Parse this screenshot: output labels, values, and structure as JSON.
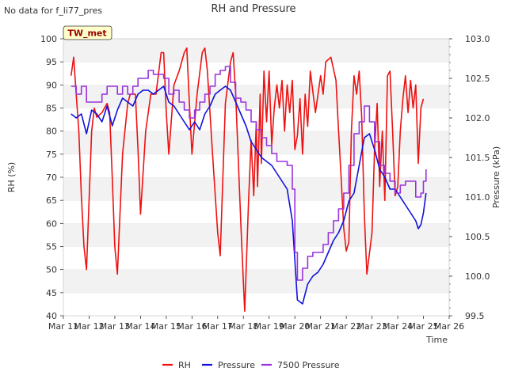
{
  "corner_note": "No data for f_li77_pres",
  "station_badge": "TW_met",
  "chart_data": {
    "type": "line",
    "title": "RH and Pressure",
    "xlabel": "Time",
    "ylabel_left": "RH (%)",
    "ylabel_right": "Pressure (kPa)",
    "x_ticks": [
      "Mar 11",
      "Mar 12",
      "Mar 13",
      "Mar 14",
      "Mar 15",
      "Mar 16",
      "Mar 17",
      "Mar 18",
      "Mar 19",
      "Mar 20",
      "Mar 21",
      "Mar 22",
      "Mar 23",
      "Mar 24",
      "Mar 25",
      "Mar 26"
    ],
    "xlim_days": [
      11,
      26
    ],
    "ylim_left": [
      40,
      100
    ],
    "yticks_left": [
      40,
      45,
      50,
      55,
      60,
      65,
      70,
      75,
      80,
      85,
      90,
      95,
      100
    ],
    "ylim_right": [
      99.5,
      103.0
    ],
    "yticks_right": [
      99.5,
      100.0,
      100.5,
      101.0,
      101.5,
      102.0,
      102.5,
      103.0
    ],
    "grid": "horizontal bands",
    "legend_position": "bottom-center",
    "series": [
      {
        "name": "RH",
        "axis": "left",
        "color": "#ee1111",
        "step": false,
        "points": [
          [
            11.3,
            92
          ],
          [
            11.4,
            96
          ],
          [
            11.5,
            88
          ],
          [
            11.6,
            80
          ],
          [
            11.7,
            66
          ],
          [
            11.8,
            55
          ],
          [
            11.9,
            50
          ],
          [
            12.1,
            80
          ],
          [
            12.2,
            85
          ],
          [
            12.3,
            83
          ],
          [
            12.5,
            84
          ],
          [
            12.7,
            86
          ],
          [
            12.8,
            84
          ],
          [
            12.9,
            70
          ],
          [
            13.0,
            55
          ],
          [
            13.1,
            49
          ],
          [
            13.3,
            75
          ],
          [
            13.5,
            86
          ],
          [
            13.6,
            88
          ],
          [
            13.8,
            88
          ],
          [
            13.9,
            76
          ],
          [
            14.0,
            62
          ],
          [
            14.2,
            80
          ],
          [
            14.4,
            88
          ],
          [
            14.6,
            88
          ],
          [
            14.8,
            97
          ],
          [
            14.9,
            97
          ],
          [
            15.0,
            84
          ],
          [
            15.1,
            75
          ],
          [
            15.3,
            90
          ],
          [
            15.5,
            93
          ],
          [
            15.7,
            97
          ],
          [
            15.8,
            98
          ],
          [
            15.9,
            86
          ],
          [
            16.0,
            75
          ],
          [
            16.2,
            88
          ],
          [
            16.4,
            97
          ],
          [
            16.5,
            98
          ],
          [
            16.6,
            93
          ],
          [
            16.8,
            75
          ],
          [
            17.0,
            58
          ],
          [
            17.1,
            53
          ],
          [
            17.3,
            86
          ],
          [
            17.5,
            95
          ],
          [
            17.6,
            97
          ],
          [
            17.7,
            88
          ],
          [
            17.9,
            60
          ],
          [
            18.0,
            47
          ],
          [
            18.05,
            41
          ],
          [
            18.2,
            65
          ],
          [
            18.3,
            78
          ],
          [
            18.4,
            66
          ],
          [
            18.5,
            82
          ],
          [
            18.55,
            68
          ],
          [
            18.65,
            88
          ],
          [
            18.7,
            73
          ],
          [
            18.8,
            93
          ],
          [
            18.9,
            82
          ],
          [
            19.0,
            93
          ],
          [
            19.1,
            77
          ],
          [
            19.2,
            85
          ],
          [
            19.3,
            90
          ],
          [
            19.4,
            85
          ],
          [
            19.5,
            91
          ],
          [
            19.6,
            80
          ],
          [
            19.7,
            90
          ],
          [
            19.8,
            84
          ],
          [
            19.9,
            91
          ],
          [
            20.0,
            76
          ],
          [
            20.1,
            79
          ],
          [
            20.2,
            87
          ],
          [
            20.3,
            75
          ],
          [
            20.4,
            88
          ],
          [
            20.5,
            81
          ],
          [
            20.6,
            93
          ],
          [
            20.8,
            84
          ],
          [
            21.0,
            92
          ],
          [
            21.1,
            88
          ],
          [
            21.2,
            95
          ],
          [
            21.4,
            96
          ],
          [
            21.6,
            91
          ],
          [
            21.7,
            80
          ],
          [
            21.8,
            70
          ],
          [
            21.9,
            59
          ],
          [
            22.0,
            54
          ],
          [
            22.1,
            56
          ],
          [
            22.2,
            80
          ],
          [
            22.3,
            92
          ],
          [
            22.4,
            88
          ],
          [
            22.5,
            93
          ],
          [
            22.6,
            83
          ],
          [
            22.7,
            62
          ],
          [
            22.8,
            49
          ],
          [
            23.0,
            58
          ],
          [
            23.1,
            76
          ],
          [
            23.2,
            86
          ],
          [
            23.3,
            68
          ],
          [
            23.4,
            80
          ],
          [
            23.5,
            65
          ],
          [
            23.6,
            92
          ],
          [
            23.7,
            93
          ],
          [
            23.8,
            80
          ],
          [
            23.9,
            66
          ],
          [
            24.0,
            68
          ],
          [
            24.1,
            80
          ],
          [
            24.2,
            87
          ],
          [
            24.3,
            92
          ],
          [
            24.4,
            84
          ],
          [
            24.5,
            91
          ],
          [
            24.6,
            85
          ],
          [
            24.7,
            90
          ],
          [
            24.8,
            73
          ],
          [
            24.9,
            85
          ],
          [
            25.0,
            87
          ]
        ]
      },
      {
        "name": "Pressure",
        "axis": "right",
        "color": "#1111dd",
        "step": false,
        "points": [
          [
            11.3,
            102.05
          ],
          [
            11.5,
            102.0
          ],
          [
            11.7,
            102.05
          ],
          [
            11.9,
            101.8
          ],
          [
            12.1,
            102.1
          ],
          [
            12.3,
            102.05
          ],
          [
            12.5,
            101.95
          ],
          [
            12.7,
            102.15
          ],
          [
            12.9,
            101.9
          ],
          [
            13.1,
            102.1
          ],
          [
            13.3,
            102.25
          ],
          [
            13.5,
            102.2
          ],
          [
            13.7,
            102.15
          ],
          [
            13.9,
            102.3
          ],
          [
            14.1,
            102.35
          ],
          [
            14.3,
            102.35
          ],
          [
            14.5,
            102.3
          ],
          [
            14.7,
            102.35
          ],
          [
            14.9,
            102.4
          ],
          [
            15.1,
            102.2
          ],
          [
            15.3,
            102.15
          ],
          [
            15.5,
            102.05
          ],
          [
            15.7,
            101.95
          ],
          [
            15.9,
            101.85
          ],
          [
            16.1,
            101.95
          ],
          [
            16.3,
            101.85
          ],
          [
            16.5,
            102.05
          ],
          [
            16.7,
            102.15
          ],
          [
            16.9,
            102.3
          ],
          [
            17.1,
            102.35
          ],
          [
            17.3,
            102.4
          ],
          [
            17.5,
            102.35
          ],
          [
            17.7,
            102.2
          ],
          [
            17.9,
            102.05
          ],
          [
            18.1,
            101.9
          ],
          [
            18.3,
            101.7
          ],
          [
            18.5,
            101.6
          ],
          [
            18.7,
            101.5
          ],
          [
            18.9,
            101.45
          ],
          [
            19.1,
            101.4
          ],
          [
            19.3,
            101.3
          ],
          [
            19.5,
            101.2
          ],
          [
            19.7,
            101.1
          ],
          [
            19.9,
            100.7
          ],
          [
            20.0,
            100.2
          ],
          [
            20.1,
            99.7
          ],
          [
            20.3,
            99.65
          ],
          [
            20.5,
            99.9
          ],
          [
            20.7,
            100.0
          ],
          [
            20.9,
            100.05
          ],
          [
            21.1,
            100.15
          ],
          [
            21.3,
            100.3
          ],
          [
            21.5,
            100.45
          ],
          [
            21.7,
            100.55
          ],
          [
            21.9,
            100.7
          ],
          [
            22.1,
            100.95
          ],
          [
            22.3,
            101.05
          ],
          [
            22.5,
            101.4
          ],
          [
            22.7,
            101.75
          ],
          [
            22.9,
            101.8
          ],
          [
            23.1,
            101.6
          ],
          [
            23.3,
            101.35
          ],
          [
            23.5,
            101.25
          ],
          [
            23.7,
            101.1
          ],
          [
            23.9,
            101.1
          ],
          [
            24.1,
            101.0
          ],
          [
            24.3,
            100.9
          ],
          [
            24.5,
            100.8
          ],
          [
            24.7,
            100.7
          ],
          [
            24.8,
            100.6
          ],
          [
            24.9,
            100.65
          ],
          [
            25.0,
            100.8
          ],
          [
            25.1,
            101.05
          ]
        ]
      },
      {
        "name": "7500 Pressure",
        "axis": "right",
        "color": "#9933dd",
        "step": true,
        "points": [
          [
            11.3,
            102.4
          ],
          [
            11.5,
            102.3
          ],
          [
            11.7,
            102.4
          ],
          [
            11.9,
            102.2
          ],
          [
            12.3,
            102.2
          ],
          [
            12.5,
            102.3
          ],
          [
            12.7,
            102.4
          ],
          [
            13.1,
            102.3
          ],
          [
            13.3,
            102.4
          ],
          [
            13.5,
            102.3
          ],
          [
            13.7,
            102.4
          ],
          [
            13.9,
            102.5
          ],
          [
            14.3,
            102.6
          ],
          [
            14.5,
            102.55
          ],
          [
            14.9,
            102.5
          ],
          [
            15.1,
            102.3
          ],
          [
            15.3,
            102.35
          ],
          [
            15.5,
            102.2
          ],
          [
            15.7,
            102.1
          ],
          [
            15.9,
            102.0
          ],
          [
            16.1,
            102.1
          ],
          [
            16.3,
            102.2
          ],
          [
            16.5,
            102.3
          ],
          [
            16.7,
            102.4
          ],
          [
            16.9,
            102.55
          ],
          [
            17.1,
            102.6
          ],
          [
            17.3,
            102.65
          ],
          [
            17.5,
            102.45
          ],
          [
            17.7,
            102.25
          ],
          [
            17.9,
            102.2
          ],
          [
            18.1,
            102.1
          ],
          [
            18.3,
            101.95
          ],
          [
            18.5,
            101.85
          ],
          [
            18.7,
            101.75
          ],
          [
            18.9,
            101.65
          ],
          [
            19.1,
            101.55
          ],
          [
            19.3,
            101.45
          ],
          [
            19.5,
            101.45
          ],
          [
            19.7,
            101.4
          ],
          [
            19.9,
            101.1
          ],
          [
            20.0,
            100.3
          ],
          [
            20.1,
            99.95
          ],
          [
            20.3,
            100.1
          ],
          [
            20.5,
            100.25
          ],
          [
            20.7,
            100.3
          ],
          [
            20.9,
            100.3
          ],
          [
            21.1,
            100.4
          ],
          [
            21.3,
            100.55
          ],
          [
            21.5,
            100.7
          ],
          [
            21.7,
            100.85
          ],
          [
            21.9,
            101.05
          ],
          [
            22.1,
            101.4
          ],
          [
            22.3,
            101.8
          ],
          [
            22.5,
            101.95
          ],
          [
            22.7,
            102.15
          ],
          [
            22.9,
            101.95
          ],
          [
            23.1,
            101.7
          ],
          [
            23.3,
            101.4
          ],
          [
            23.5,
            101.3
          ],
          [
            23.7,
            101.2
          ],
          [
            23.9,
            101.05
          ],
          [
            24.1,
            101.15
          ],
          [
            24.3,
            101.2
          ],
          [
            24.5,
            101.2
          ],
          [
            24.7,
            101.0
          ],
          [
            24.9,
            101.05
          ],
          [
            25.0,
            101.2
          ],
          [
            25.1,
            101.35
          ]
        ]
      }
    ]
  }
}
